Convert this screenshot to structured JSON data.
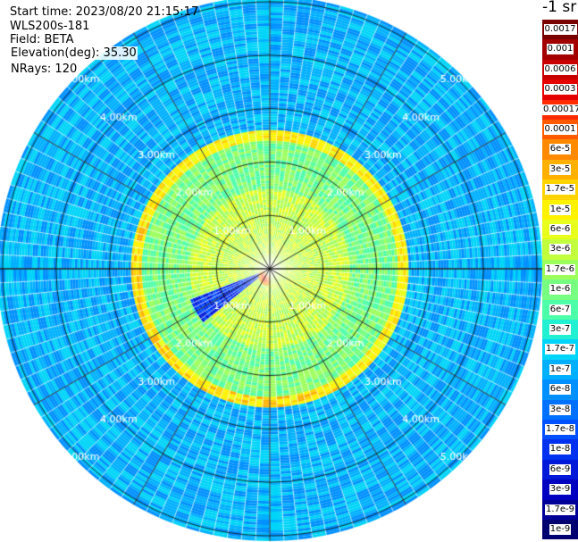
{
  "header": {
    "start_time": "Start time: 2023/08/20 21:15:17",
    "instrument": "WLS200s-181",
    "field": "Field: BETA",
    "elevation": "Elevation(deg): 35.30",
    "nrays": "NRays: 120"
  },
  "colorbar": {
    "unit": "-1 sr",
    "labels": [
      "0.0017",
      "0.001",
      "0.0006",
      "0.0003",
      "0.00017",
      "0.0001",
      "6e-5",
      "3e-5",
      "1.7e-5",
      "1e-5",
      "6e-6",
      "3e-6",
      "1.7e-6",
      "1e-6",
      "6e-7",
      "3e-7",
      "1.7e-7",
      "1e-7",
      "6e-8",
      "3e-8",
      "1.7e-8",
      "1e-8",
      "6e-9",
      "3e-9",
      "1.7e-9",
      "1e-9"
    ],
    "colors": [
      "#7a0000",
      "#a30000",
      "#c80000",
      "#e60000",
      "#ff2a00",
      "#ff5a00",
      "#ff8a00",
      "#ffb000",
      "#ffd400",
      "#fff200",
      "#e8ff1c",
      "#c2ff3c",
      "#9cff5c",
      "#76ff80",
      "#4dffa8",
      "#22f0d2",
      "#00d4f8",
      "#00b0ff",
      "#0090ff",
      "#0070ff",
      "#0050ff",
      "#0030f0",
      "#0018d8",
      "#0000c0",
      "#000098",
      "#000070"
    ]
  },
  "chart_data": {
    "type": "heatmap",
    "projection": "polar PPI scan",
    "ring_labels": [
      "1.00km",
      "2.00km",
      "3.00km",
      "4.00km",
      "5.00km"
    ],
    "range_rings_km": [
      1,
      2,
      3,
      4,
      5
    ],
    "max_range_km": 5.1,
    "n_rays": 120,
    "radial_bands": [
      {
        "from_km": 0.0,
        "to_km": 1.5,
        "value": "3e-6"
      },
      {
        "from_km": 1.5,
        "to_km": 2.4,
        "value": "1e-6"
      },
      {
        "from_km": 2.4,
        "to_km": 2.6,
        "value": "1.7e-5"
      },
      {
        "from_km": 2.6,
        "to_km": 5.1,
        "value": "1e-7"
      }
    ],
    "features": [
      {
        "type": "ring",
        "radius_km": 2.5,
        "value": "1.7e-5"
      },
      {
        "type": "blob",
        "range_km": 0.2,
        "azimuth_deg": 210,
        "value": "6e-5"
      },
      {
        "type": "low_sector",
        "azimuth_deg": [
          230,
          250
        ],
        "value": "1e-8"
      }
    ],
    "grid": true
  }
}
